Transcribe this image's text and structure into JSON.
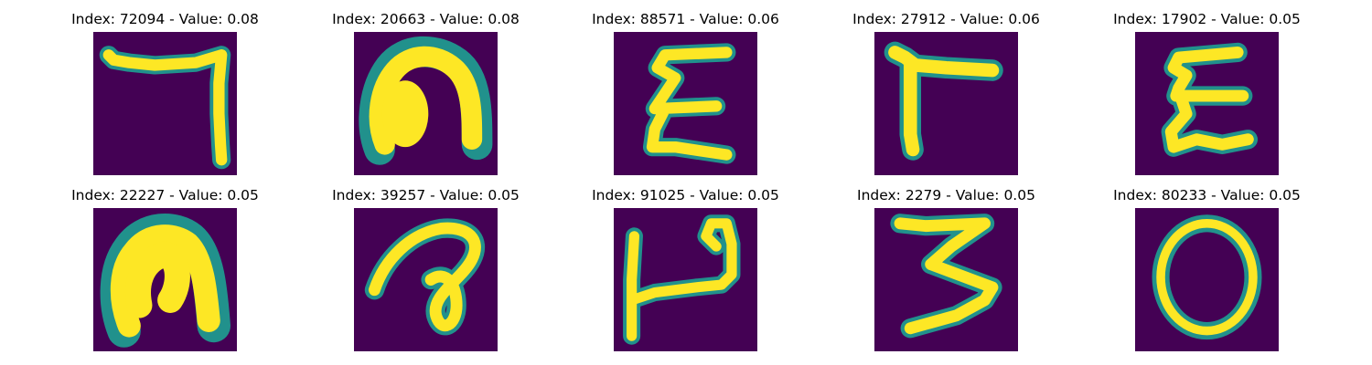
{
  "colors": {
    "background": "#440154",
    "low": "#3b528b",
    "mid": "#21918c",
    "high": "#5ec962",
    "peak": "#fde725"
  },
  "panels": [
    {
      "title": "Index: 72094 - Value: 0.08",
      "glyph": "seven-hook"
    },
    {
      "title": "Index: 20663 - Value: 0.08",
      "glyph": "arch-blob"
    },
    {
      "title": "Index: 88571 - Value: 0.06",
      "glyph": "epsilon-zigzag"
    },
    {
      "title": "Index: 27912 - Value: 0.06",
      "glyph": "gamma-shape"
    },
    {
      "title": "Index: 17902 - Value: 0.05",
      "glyph": "epsilon-zigzag"
    },
    {
      "title": "Index: 22227 - Value: 0.05",
      "glyph": "arch-blob"
    },
    {
      "title": "Index: 39257 - Value: 0.05",
      "glyph": "loop-curl"
    },
    {
      "title": "Index: 91025 - Value: 0.05",
      "glyph": "hook-t-shape"
    },
    {
      "title": "Index: 2279 - Value: 0.05",
      "glyph": "three-zigzag"
    },
    {
      "title": "Index: 80233 - Value: 0.05",
      "glyph": "ring"
    }
  ]
}
